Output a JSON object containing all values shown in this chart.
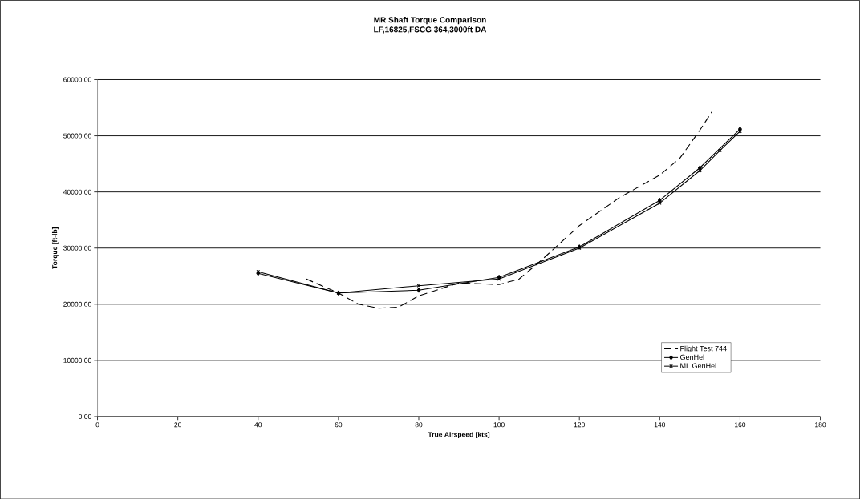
{
  "chart_data": {
    "type": "line",
    "title": "MR Shaft Torque Comparison",
    "subtitle": "LF,16825,FSCG 364,3000ft DA",
    "xlabel": "True Airspeed [kts]",
    "ylabel": "Torque [ft-lb]",
    "xlim": [
      0,
      180
    ],
    "xticks": [
      0,
      20,
      40,
      60,
      80,
      100,
      120,
      140,
      160,
      180
    ],
    "ylim": [
      0,
      60000
    ],
    "yticks": [
      {
        "value": 0,
        "label": "0.00"
      },
      {
        "value": 10000,
        "label": "10000.00"
      },
      {
        "value": 20000,
        "label": "20000.00"
      },
      {
        "value": 30000,
        "label": "30000.00"
      },
      {
        "value": 40000,
        "label": "40000.00"
      },
      {
        "value": 50000,
        "label": "50000.00"
      },
      {
        "value": 60000,
        "label": "60000.00"
      }
    ],
    "grid": "y",
    "legend": "bottom right",
    "series": [
      {
        "name": "Flight Test 744",
        "color": "#000000",
        "line_style": "dashed",
        "marker": "none",
        "x": [
          52,
          60,
          65,
          70,
          75,
          80,
          90,
          100,
          105,
          110,
          120,
          130,
          140,
          145,
          150,
          153
        ],
        "values": [
          24500,
          22000,
          20000,
          19300,
          19500,
          21500,
          23800,
          23500,
          24500,
          27500,
          34000,
          39000,
          43000,
          46000,
          51000,
          54300
        ]
      },
      {
        "name": "GenHel",
        "color": "#000000",
        "line_style": "solid",
        "marker": "diamond",
        "x": [
          40,
          60,
          80,
          100,
          120,
          140,
          150,
          160
        ],
        "values": [
          25500,
          22000,
          22500,
          24800,
          30200,
          38500,
          44300,
          51200
        ]
      },
      {
        "name": "ML GenHel",
        "color": "#000000",
        "line_style": "solid",
        "marker": "cross",
        "x": [
          40,
          60,
          80,
          100,
          120,
          140,
          150,
          155,
          160
        ],
        "values": [
          25800,
          22000,
          23300,
          24500,
          30000,
          38000,
          43800,
          47400,
          50800
        ]
      }
    ]
  }
}
